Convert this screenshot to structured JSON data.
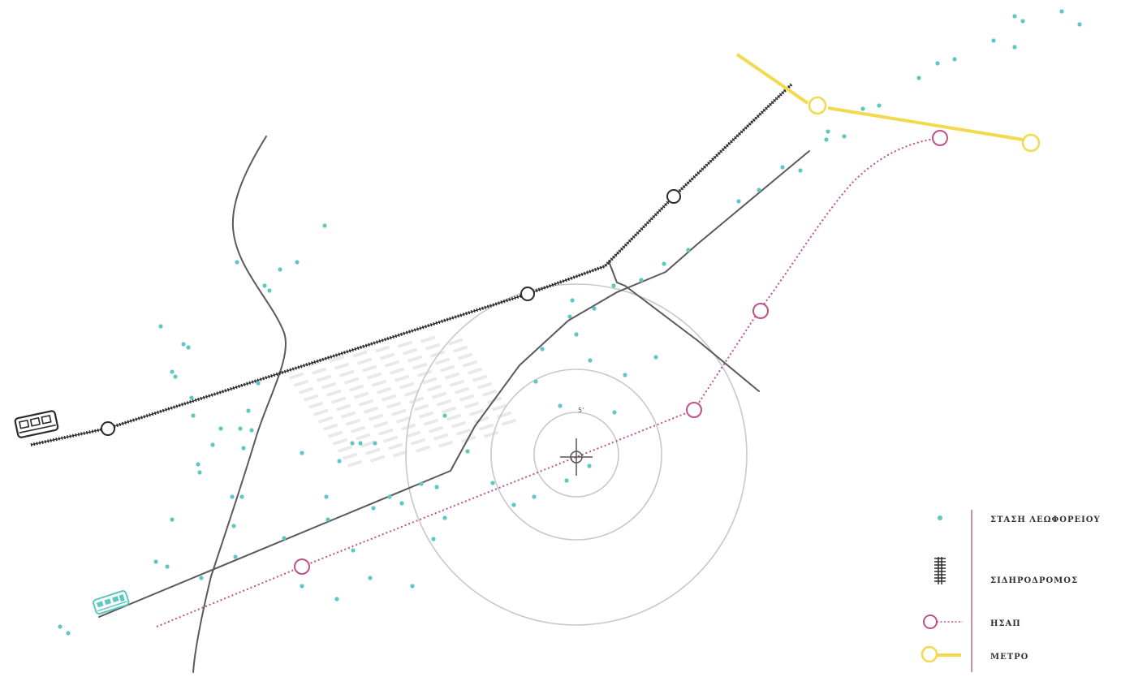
{
  "legend": {
    "items": [
      {
        "key": "bus-stop",
        "label": "ΣΤΑΣΗ ΛΕΩΦΟΡΕΙΟΥ",
        "icon": "bus-stop-dot-icon",
        "color": "#5ec7c2"
      },
      {
        "key": "railway",
        "label": "ΣΙΔΗΡΟΔΡΟΜΟΣ",
        "icon": "railway-track-icon",
        "color": "#2b2b2b"
      },
      {
        "key": "isap",
        "label": "ΗΣΑΠ",
        "icon": "isap-station-icon",
        "color": "#c0508a"
      },
      {
        "key": "metro",
        "label": "ΜΕΤΡΟ",
        "icon": "metro-station-icon",
        "color": "#f2d94e"
      }
    ],
    "divider_color": "#b56a96"
  },
  "center_marker": {
    "label": "5'",
    "icon": "crosshair-target-icon"
  },
  "vehicle_icons": {
    "train": "train-icon",
    "bus": "bus-icon"
  },
  "colors": {
    "road": "#5a5a5a",
    "railway": "#2b2b2b",
    "isap": "#c0508a",
    "metro": "#f2d94e",
    "bus_stop": "#5ec7c2",
    "rings": "#c8c8c8",
    "bus_icon": "#5ec7c2"
  }
}
